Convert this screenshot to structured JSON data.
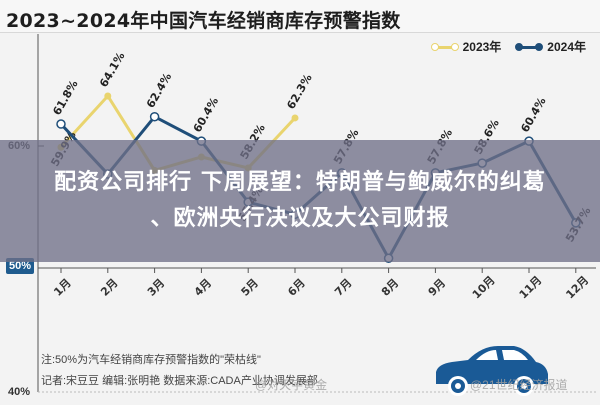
{
  "header": {
    "title": "2023~2024年中国汽车经销商库存预警指数"
  },
  "legend": [
    {
      "label": "2023年",
      "color": "#e9d46e"
    },
    {
      "label": "2024年",
      "color": "#1f4e79"
    }
  ],
  "axis": {
    "y_labels": [
      "60%",
      "50%",
      "40%"
    ]
  },
  "banner": {
    "line1": "配资公司排行 下周展望：特朗普与鲍威尔的纠葛",
    "line2": "、欧洲央行决议及大公司财报"
  },
  "footer": {
    "note": "注:50%为汽车经销商库存预警指数的\"荣枯线\"",
    "credits": "记者:宋豆豆   编辑:张明艳   数据来源:CADA产业协调发展部",
    "watermark_left": "@对天字黄金",
    "watermark_right": "@21世纪经济报道"
  },
  "colors": {
    "series_2023": "#e9d46e",
    "series_2024": "#1f4e79",
    "badge_50": "#1f5b8e",
    "car": "#1a5a96",
    "banner_overlay": "rgba(112,112,136,0.78)"
  },
  "chart_data": {
    "type": "line",
    "title": "2023~2024年中国汽车经销商库存预警指数",
    "xlabel": "",
    "ylabel": "",
    "ylim": [
      40,
      66
    ],
    "y_ticks": [
      40,
      50,
      60
    ],
    "categories": [
      "1月",
      "2月",
      "3月",
      "4月",
      "5月",
      "6月",
      "7月",
      "8月",
      "9月",
      "10月",
      "11月",
      "12月"
    ],
    "series": [
      {
        "name": "2023年",
        "values": [
          59.9,
          64.1,
          58.0,
          59.1,
          58.2,
          62.3,
          null,
          null,
          null,
          null,
          null,
          null
        ],
        "labels": [
          "59.9%",
          "64.1%",
          "",
          "",
          "58.2%",
          "62.3%",
          "",
          "",
          "",
          "",
          "",
          ""
        ]
      },
      {
        "name": "2024年",
        "values": [
          61.8,
          57.7,
          62.4,
          60.4,
          55.4,
          54.4,
          57.8,
          50.8,
          57.8,
          58.6,
          60.4,
          53.7
        ],
        "labels": [
          "61.8%",
          "",
          "62.4%",
          "60.4%",
          "55.4%",
          "",
          "57.8%",
          "",
          "57.8%",
          "58.6%",
          "60.4%",
          "53.7%"
        ]
      }
    ],
    "legend_position": "top-right",
    "grid": false,
    "reference_line": {
      "value": 50,
      "label": "荣枯线"
    }
  }
}
